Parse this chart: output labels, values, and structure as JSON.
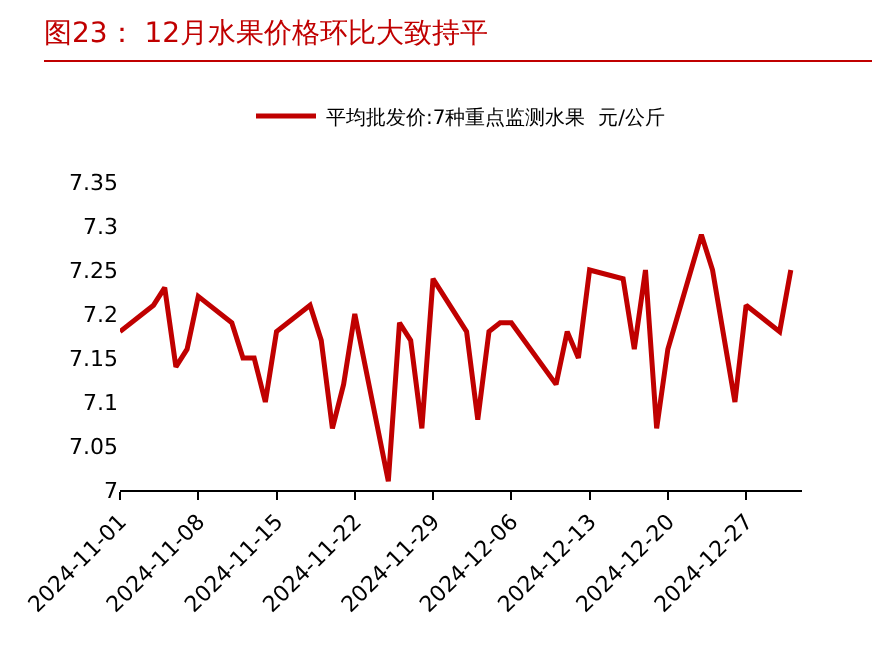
{
  "chart_data": {
    "type": "line",
    "title": "图23：   12月水果价格环比大致持平",
    "x": [
      "2024-11-01",
      "2024-11-04",
      "2024-11-05",
      "2024-11-06",
      "2024-11-07",
      "2024-11-08",
      "2024-11-11",
      "2024-11-12",
      "2024-11-13",
      "2024-11-14",
      "2024-11-15",
      "2024-11-18",
      "2024-11-19",
      "2024-11-20",
      "2024-11-21",
      "2024-11-22",
      "2024-11-25",
      "2024-11-26",
      "2024-11-27",
      "2024-11-28",
      "2024-11-29",
      "2024-12-02",
      "2024-12-03",
      "2024-12-04",
      "2024-12-05",
      "2024-12-06",
      "2024-12-10",
      "2024-12-11",
      "2024-12-12",
      "2024-12-13",
      "2024-12-16",
      "2024-12-17",
      "2024-12-18",
      "2024-12-19",
      "2024-12-20",
      "2024-12-23",
      "2024-12-24",
      "2024-12-26",
      "2024-12-27",
      "2024-12-30",
      "2024-12-31"
    ],
    "series": [
      {
        "name": "平均批发价:7种重点监测水果  元/公斤",
        "color": "#c00000",
        "values": [
          7.18,
          7.21,
          7.23,
          7.14,
          7.16,
          7.22,
          7.19,
          7.15,
          7.15,
          7.1,
          7.18,
          7.21,
          7.17,
          7.07,
          7.12,
          7.2,
          7.01,
          7.19,
          7.17,
          7.07,
          7.24,
          7.18,
          7.08,
          7.18,
          7.19,
          7.19,
          7.12,
          7.18,
          7.15,
          7.25,
          7.24,
          7.16,
          7.25,
          7.07,
          7.16,
          7.29,
          7.25,
          7.1,
          7.21,
          7.18,
          7.25
        ]
      }
    ],
    "xlim": [
      "2024-11-01",
      "2025-01-01"
    ],
    "xticks": [
      "2024-11-01",
      "2024-11-08",
      "2024-11-15",
      "2024-11-22",
      "2024-11-29",
      "2024-12-06",
      "2024-12-13",
      "2024-12-20",
      "2024-12-27"
    ],
    "ylim": [
      7,
      7.35
    ],
    "yticks": [
      {
        "value": 7,
        "label": "7"
      },
      7.05,
      {
        "value": 7.1,
        "label": "7.1"
      },
      7.15,
      {
        "value": 7.2,
        "label": "7.2"
      },
      7.25,
      {
        "value": 7.3,
        "label": "7.3"
      },
      7.35
    ],
    "grid": false,
    "legend": "top",
    "marker": "none",
    "line_style": "solid"
  }
}
